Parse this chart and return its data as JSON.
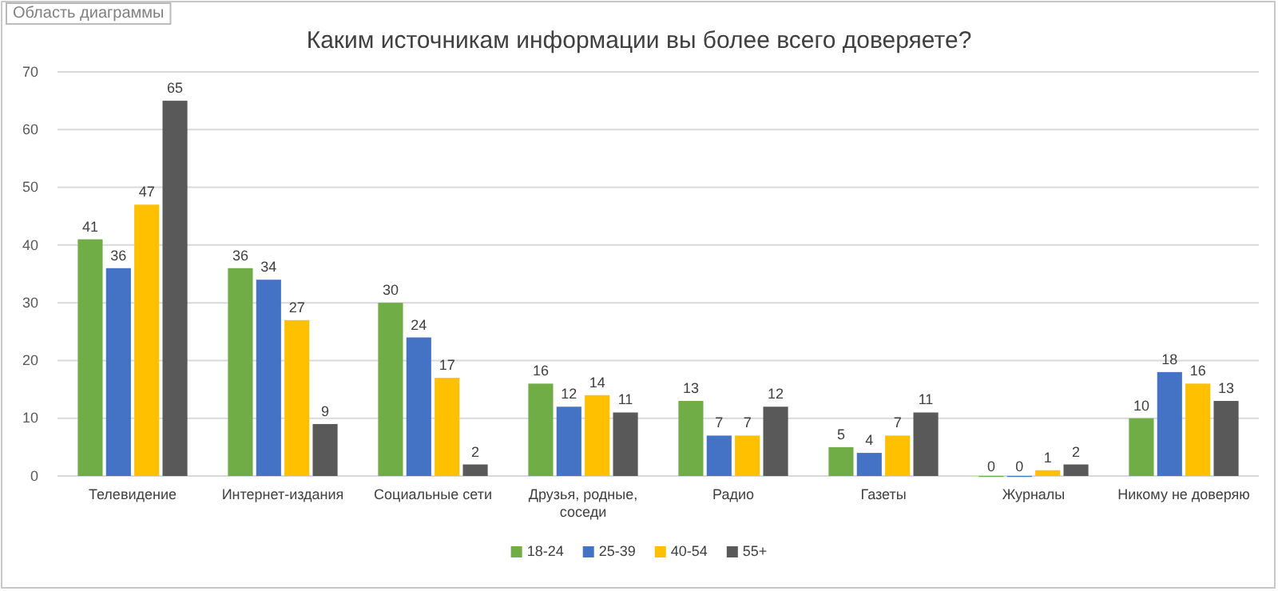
{
  "chart_data": {
    "type": "bar",
    "title": "Каким источникам информации вы более всего доверяете?",
    "annotations": [
      "Область диаграммы"
    ],
    "categories": [
      "Телевидение",
      "Интернет-издания",
      "Социальные сети",
      "Друзья, родные, соседи",
      "Радио",
      "Газеты",
      "Журналы",
      "Никому не доверяю"
    ],
    "series": [
      {
        "name": "18-24",
        "color": "#70ad47",
        "values": [
          41,
          36,
          30,
          16,
          13,
          5,
          0,
          10
        ]
      },
      {
        "name": "25-39",
        "color": "#4472c4",
        "values": [
          36,
          34,
          24,
          12,
          7,
          4,
          0,
          18
        ]
      },
      {
        "name": "40-54",
        "color": "#ffc000",
        "values": [
          47,
          27,
          17,
          14,
          7,
          7,
          1,
          16
        ]
      },
      {
        "name": "55+",
        "color": "#595959",
        "values": [
          65,
          9,
          2,
          11,
          12,
          11,
          2,
          13
        ]
      }
    ],
    "ylim": [
      0,
      70
    ],
    "yticks": [
      0,
      10,
      20,
      30,
      40,
      50,
      60,
      70
    ],
    "grid": "y",
    "legend": "bottom",
    "data_labels": true
  }
}
